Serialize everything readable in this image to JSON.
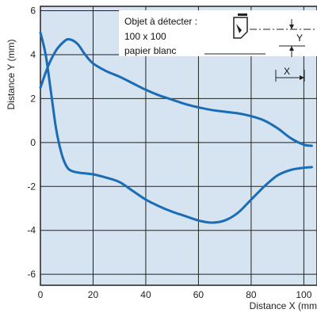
{
  "chart_data": {
    "type": "line",
    "title": "",
    "xlabel": "Distance X (mm)",
    "ylabel": "Distance Y (mm)",
    "xlim": [
      0,
      105
    ],
    "ylim": [
      -6.5,
      6.2
    ],
    "x_ticks": [
      0,
      20,
      40,
      60,
      80,
      100
    ],
    "y_ticks": [
      -6,
      -4,
      -2,
      0,
      2,
      4,
      6
    ],
    "grid": true,
    "legend": "none",
    "annotation": {
      "line1": "Objet à détecter :",
      "line2": "100 x 100",
      "line3": "papier blanc",
      "y_marker": "Y",
      "x_marker": "X"
    },
    "series": [
      {
        "points": [
          [
            0,
            2.5
          ],
          [
            3,
            3.5
          ],
          [
            6,
            4.2
          ],
          [
            9,
            4.6
          ],
          [
            11,
            4.7
          ],
          [
            14,
            4.5
          ],
          [
            17,
            4.0
          ],
          [
            20,
            3.6
          ],
          [
            25,
            3.25
          ],
          [
            30,
            3.0
          ],
          [
            35,
            2.7
          ],
          [
            40,
            2.4
          ],
          [
            45,
            2.15
          ],
          [
            50,
            1.95
          ],
          [
            55,
            1.75
          ],
          [
            60,
            1.6
          ],
          [
            65,
            1.48
          ],
          [
            70,
            1.4
          ],
          [
            75,
            1.33
          ],
          [
            80,
            1.2
          ],
          [
            85,
            1.0
          ],
          [
            90,
            0.65
          ],
          [
            95,
            0.2
          ],
          [
            100,
            -0.1
          ],
          [
            103,
            -0.15
          ]
        ]
      },
      {
        "points": [
          [
            0,
            5.0
          ],
          [
            2,
            4.0
          ],
          [
            4,
            2.3
          ],
          [
            6,
            0.6
          ],
          [
            8,
            -0.5
          ],
          [
            10,
            -1.1
          ],
          [
            12,
            -1.3
          ],
          [
            15,
            -1.38
          ],
          [
            20,
            -1.45
          ],
          [
            25,
            -1.6
          ],
          [
            30,
            -1.8
          ],
          [
            35,
            -2.2
          ],
          [
            40,
            -2.6
          ],
          [
            45,
            -2.9
          ],
          [
            50,
            -3.15
          ],
          [
            55,
            -3.35
          ],
          [
            60,
            -3.55
          ],
          [
            65,
            -3.65
          ],
          [
            70,
            -3.55
          ],
          [
            75,
            -3.2
          ],
          [
            80,
            -2.6
          ],
          [
            85,
            -2.0
          ],
          [
            90,
            -1.5
          ],
          [
            95,
            -1.25
          ],
          [
            100,
            -1.15
          ],
          [
            103,
            -1.12
          ]
        ]
      }
    ]
  }
}
